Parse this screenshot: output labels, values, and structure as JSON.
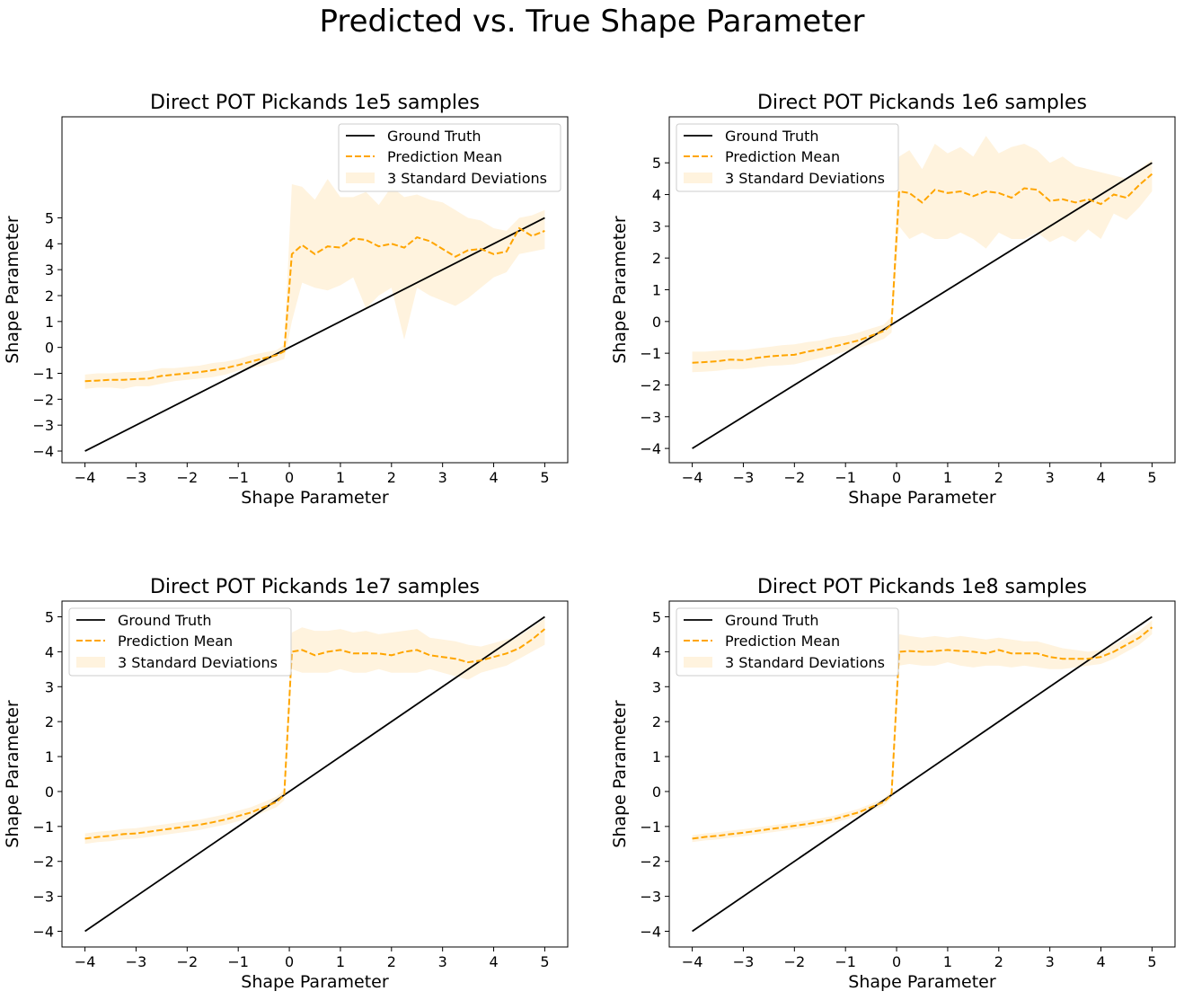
{
  "figure": {
    "title": "Predicted vs. True Shape Parameter",
    "colors": {
      "ground_truth": "#000000",
      "prediction": "#FFA500",
      "band": "#FFA500"
    }
  },
  "chart_data": [
    {
      "type": "line",
      "title": "Direct POT Pickands 1e5 samples",
      "xlabel": "Shape Parameter",
      "ylabel": "Shape Parameter",
      "xlim": [
        -4.45,
        5.45
      ],
      "ylim": [
        -4.45,
        8.9
      ],
      "xticks": [
        -4,
        -3,
        -2,
        -1,
        0,
        1,
        2,
        3,
        4,
        5
      ],
      "yticks": [
        -4,
        -3,
        -2,
        -1,
        0,
        1,
        2,
        3,
        4,
        5
      ],
      "legend": {
        "position": "upper right",
        "entries": [
          "Ground Truth",
          "Prediction Mean",
          "3 Standard Deviations"
        ]
      },
      "x": [
        -4,
        -3.75,
        -3.5,
        -3.25,
        -3,
        -2.75,
        -2.5,
        -2.25,
        -2,
        -1.75,
        -1.5,
        -1.25,
        -1,
        -0.75,
        -0.5,
        -0.25,
        -0.1,
        0.05,
        0.25,
        0.5,
        0.75,
        1,
        1.25,
        1.5,
        1.75,
        2,
        2.25,
        2.5,
        2.75,
        3,
        3.25,
        3.5,
        3.75,
        4,
        4.25,
        4.5,
        4.75,
        5
      ],
      "series": [
        {
          "name": "Ground Truth",
          "style": "solid",
          "x": [
            -4,
            5
          ],
          "y": [
            -4,
            5
          ]
        },
        {
          "name": "Prediction Mean",
          "style": "dashed",
          "y": [
            -1.3,
            -1.28,
            -1.25,
            -1.25,
            -1.22,
            -1.2,
            -1.1,
            -1.05,
            -1.0,
            -0.95,
            -0.88,
            -0.8,
            -0.68,
            -0.55,
            -0.42,
            -0.3,
            -0.15,
            3.6,
            3.95,
            3.6,
            3.9,
            3.85,
            4.2,
            4.15,
            3.9,
            4.0,
            3.85,
            4.25,
            4.1,
            3.8,
            3.5,
            3.75,
            3.8,
            3.6,
            3.7,
            4.6,
            4.3,
            4.5
          ]
        },
        {
          "name": "3 Standard Deviations",
          "style": "band",
          "lower": [
            -1.6,
            -1.55,
            -1.55,
            -1.6,
            -1.5,
            -1.5,
            -1.4,
            -1.3,
            -1.25,
            -1.2,
            -1.15,
            -1.05,
            -0.9,
            -0.8,
            -0.7,
            -0.55,
            -0.45,
            1.0,
            2.5,
            2.3,
            2.2,
            2.4,
            2.7,
            1.5,
            2.0,
            2.3,
            0.3,
            2.3,
            2.0,
            1.8,
            1.6,
            1.9,
            2.3,
            2.7,
            2.9,
            3.6,
            3.7,
            3.8
          ],
          "upper": [
            -1.05,
            -1.0,
            -1.0,
            -0.95,
            -0.95,
            -0.9,
            -0.8,
            -0.8,
            -0.75,
            -0.7,
            -0.6,
            -0.55,
            -0.45,
            -0.3,
            -0.2,
            -0.1,
            0.1,
            6.3,
            6.2,
            5.7,
            6.5,
            5.8,
            5.8,
            6.0,
            5.5,
            6.2,
            5.8,
            5.9,
            5.7,
            5.6,
            5.3,
            5.0,
            4.9,
            4.6,
            4.5,
            5.0,
            5.1,
            5.3
          ]
        }
      ]
    },
    {
      "type": "line",
      "title": "Direct POT Pickands 1e6 samples",
      "xlabel": "Shape Parameter",
      "ylabel": "Shape Parameter",
      "xlim": [
        -4.45,
        5.45
      ],
      "ylim": [
        -4.45,
        6.45
      ],
      "xticks": [
        -4,
        -3,
        -2,
        -1,
        0,
        1,
        2,
        3,
        4,
        5
      ],
      "yticks": [
        -4,
        -3,
        -2,
        -1,
        0,
        1,
        2,
        3,
        4,
        5
      ],
      "legend": {
        "position": "upper left",
        "entries": [
          "Ground Truth",
          "Prediction Mean",
          "3 Standard Deviations"
        ]
      },
      "x": [
        -4,
        -3.75,
        -3.5,
        -3.25,
        -3,
        -2.75,
        -2.5,
        -2.25,
        -2,
        -1.75,
        -1.5,
        -1.25,
        -1,
        -0.75,
        -0.5,
        -0.25,
        -0.1,
        0.05,
        0.25,
        0.5,
        0.75,
        1,
        1.25,
        1.5,
        1.75,
        2,
        2.25,
        2.5,
        2.75,
        3,
        3.25,
        3.5,
        3.75,
        4,
        4.25,
        4.5,
        4.75,
        5
      ],
      "series": [
        {
          "name": "Ground Truth",
          "style": "solid",
          "x": [
            -4,
            5
          ],
          "y": [
            -4,
            5
          ]
        },
        {
          "name": "Prediction Mean",
          "style": "dashed",
          "y": [
            -1.3,
            -1.28,
            -1.25,
            -1.2,
            -1.22,
            -1.15,
            -1.1,
            -1.07,
            -1.05,
            -0.95,
            -0.88,
            -0.8,
            -0.7,
            -0.6,
            -0.45,
            -0.3,
            -0.1,
            4.1,
            4.05,
            3.75,
            4.15,
            4.05,
            4.1,
            3.95,
            4.1,
            4.05,
            3.9,
            4.2,
            4.15,
            3.8,
            3.85,
            3.75,
            3.85,
            3.7,
            4.0,
            3.9,
            4.3,
            4.65
          ]
        },
        {
          "name": "3 Standard Deviations",
          "style": "band",
          "lower": [
            -1.6,
            -1.58,
            -1.55,
            -1.5,
            -1.5,
            -1.45,
            -1.4,
            -1.38,
            -1.35,
            -1.25,
            -1.15,
            -1.05,
            -0.95,
            -0.85,
            -0.7,
            -0.55,
            -0.35,
            3.0,
            2.6,
            2.8,
            2.6,
            2.6,
            2.8,
            2.6,
            2.3,
            2.8,
            2.6,
            2.6,
            2.8,
            2.5,
            2.7,
            2.5,
            2.9,
            2.6,
            3.4,
            3.2,
            3.6,
            4.1
          ]
        },
        {
          "name": "3 Standard Deviations upper",
          "style": "band-upper",
          "upper": [
            -0.95,
            -0.95,
            -0.92,
            -0.9,
            -0.9,
            -0.85,
            -0.8,
            -0.75,
            -0.72,
            -0.65,
            -0.6,
            -0.5,
            -0.45,
            -0.35,
            -0.22,
            -0.1,
            0.15,
            5.2,
            5.4,
            4.8,
            5.6,
            5.3,
            5.5,
            5.2,
            5.85,
            5.3,
            5.5,
            5.6,
            5.4,
            5.0,
            5.2,
            4.9,
            4.8,
            4.7,
            4.6,
            4.5,
            4.8,
            5.1
          ]
        }
      ]
    },
    {
      "type": "line",
      "title": "Direct POT Pickands 1e7 samples",
      "xlabel": "Shape Parameter",
      "ylabel": "Shape Parameter",
      "xlim": [
        -4.45,
        5.45
      ],
      "ylim": [
        -4.45,
        5.45
      ],
      "xticks": [
        -4,
        -3,
        -2,
        -1,
        0,
        1,
        2,
        3,
        4,
        5
      ],
      "yticks": [
        -4,
        -3,
        -2,
        -1,
        0,
        1,
        2,
        3,
        4,
        5
      ],
      "legend": {
        "position": "upper left",
        "entries": [
          "Ground Truth",
          "Prediction Mean",
          "3 Standard Deviations"
        ]
      },
      "x": [
        -4,
        -3.75,
        -3.5,
        -3.25,
        -3,
        -2.75,
        -2.5,
        -2.25,
        -2,
        -1.75,
        -1.5,
        -1.25,
        -1,
        -0.75,
        -0.5,
        -0.25,
        -0.1,
        0.05,
        0.25,
        0.5,
        0.75,
        1,
        1.25,
        1.5,
        1.75,
        2,
        2.25,
        2.5,
        2.75,
        3,
        3.25,
        3.5,
        3.75,
        4,
        4.25,
        4.5,
        4.75,
        5
      ],
      "series": [
        {
          "name": "Ground Truth",
          "style": "solid",
          "x": [
            -4,
            5
          ],
          "y": [
            -4,
            5
          ]
        },
        {
          "name": "Prediction Mean",
          "style": "dashed",
          "y": [
            -1.35,
            -1.3,
            -1.27,
            -1.22,
            -1.2,
            -1.15,
            -1.1,
            -1.05,
            -1.0,
            -0.95,
            -0.88,
            -0.8,
            -0.7,
            -0.6,
            -0.45,
            -0.3,
            -0.1,
            4.0,
            4.05,
            3.9,
            4.0,
            4.05,
            3.95,
            3.95,
            3.95,
            3.9,
            4.0,
            4.05,
            3.9,
            3.85,
            3.8,
            3.7,
            3.75,
            3.85,
            3.95,
            4.1,
            4.35,
            4.65
          ]
        },
        {
          "name": "3 Standard Deviations",
          "style": "band",
          "lower": [
            -1.5,
            -1.45,
            -1.42,
            -1.37,
            -1.35,
            -1.3,
            -1.25,
            -1.2,
            -1.15,
            -1.1,
            -1.02,
            -0.95,
            -0.85,
            -0.75,
            -0.6,
            -0.45,
            -0.25,
            3.5,
            3.4,
            3.4,
            3.4,
            3.5,
            3.4,
            3.4,
            3.5,
            3.4,
            3.4,
            3.4,
            3.5,
            3.4,
            3.3,
            3.2,
            3.4,
            3.5,
            3.6,
            3.8,
            4.0,
            4.2
          ],
          "upper": [
            -1.2,
            -1.15,
            -1.12,
            -1.07,
            -1.05,
            -1.0,
            -0.95,
            -0.9,
            -0.85,
            -0.8,
            -0.73,
            -0.65,
            -0.55,
            -0.45,
            -0.3,
            -0.15,
            0.05,
            4.55,
            4.7,
            4.6,
            4.6,
            4.65,
            4.55,
            4.6,
            4.5,
            4.55,
            4.6,
            4.65,
            4.4,
            4.35,
            4.3,
            4.2,
            4.15,
            4.25,
            4.35,
            4.45,
            4.7,
            4.95
          ]
        }
      ]
    },
    {
      "type": "line",
      "title": "Direct POT Pickands 1e8 samples",
      "xlabel": "Shape Parameter",
      "ylabel": "Shape Parameter",
      "xlim": [
        -4.45,
        5.45
      ],
      "ylim": [
        -4.45,
        5.45
      ],
      "xticks": [
        -4,
        -3,
        -2,
        -1,
        0,
        1,
        2,
        3,
        4,
        5
      ],
      "yticks": [
        -4,
        -3,
        -2,
        -1,
        0,
        1,
        2,
        3,
        4,
        5
      ],
      "legend": {
        "position": "upper left",
        "entries": [
          "Ground Truth",
          "Prediction Mean",
          "3 Standard Deviations"
        ]
      },
      "x": [
        -4,
        -3.75,
        -3.5,
        -3.25,
        -3,
        -2.75,
        -2.5,
        -2.25,
        -2,
        -1.75,
        -1.5,
        -1.25,
        -1,
        -0.75,
        -0.5,
        -0.25,
        -0.1,
        0.05,
        0.25,
        0.5,
        0.75,
        1,
        1.25,
        1.5,
        1.75,
        2,
        2.25,
        2.5,
        2.75,
        3,
        3.25,
        3.5,
        3.75,
        4,
        4.25,
        4.5,
        4.75,
        5
      ],
      "series": [
        {
          "name": "Ground Truth",
          "style": "solid",
          "x": [
            -4,
            5
          ],
          "y": [
            -4,
            5
          ]
        },
        {
          "name": "Prediction Mean",
          "style": "dashed",
          "y": [
            -1.35,
            -1.3,
            -1.27,
            -1.22,
            -1.18,
            -1.13,
            -1.08,
            -1.03,
            -0.98,
            -0.93,
            -0.87,
            -0.8,
            -0.7,
            -0.6,
            -0.45,
            -0.3,
            -0.1,
            4.0,
            4.02,
            4.0,
            4.02,
            4.05,
            4.02,
            4.0,
            3.95,
            4.05,
            3.95,
            3.95,
            3.95,
            3.85,
            3.8,
            3.8,
            3.8,
            3.85,
            4.0,
            4.2,
            4.4,
            4.7
          ]
        },
        {
          "name": "3 Standard Deviations",
          "style": "band",
          "lower": [
            -1.45,
            -1.4,
            -1.37,
            -1.32,
            -1.28,
            -1.23,
            -1.18,
            -1.13,
            -1.08,
            -1.03,
            -0.97,
            -0.9,
            -0.8,
            -0.7,
            -0.55,
            -0.4,
            -0.2,
            3.6,
            3.65,
            3.6,
            3.6,
            3.7,
            3.6,
            3.55,
            3.6,
            3.6,
            3.55,
            3.6,
            3.55,
            3.5,
            3.5,
            3.55,
            3.6,
            3.65,
            3.8,
            4.0,
            4.2,
            4.5
          ],
          "upper": [
            -1.25,
            -1.2,
            -1.17,
            -1.12,
            -1.08,
            -1.03,
            -0.98,
            -0.93,
            -0.88,
            -0.83,
            -0.77,
            -0.7,
            -0.6,
            -0.5,
            -0.35,
            -0.2,
            0.0,
            4.5,
            4.45,
            4.4,
            4.45,
            4.4,
            4.45,
            4.4,
            4.35,
            4.4,
            4.35,
            4.3,
            4.3,
            4.2,
            4.1,
            4.05,
            4.0,
            4.05,
            4.2,
            4.4,
            4.6,
            4.9
          ]
        }
      ]
    }
  ]
}
